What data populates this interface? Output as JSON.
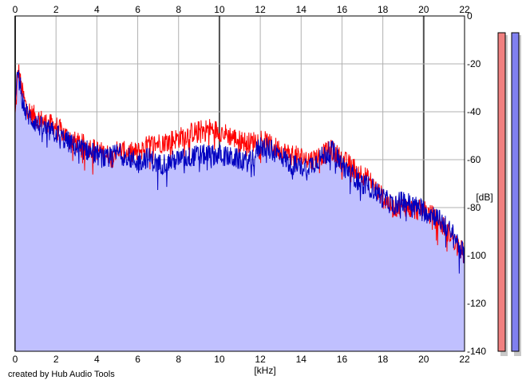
{
  "chart_data": {
    "type": "line",
    "xlabel": "[kHz]",
    "ylabel": "[dB]",
    "xlim": [
      0,
      22
    ],
    "ylim": [
      -140,
      0
    ],
    "x_ticks": [
      0,
      2,
      4,
      6,
      8,
      10,
      12,
      14,
      16,
      18,
      20,
      22
    ],
    "y_ticks": [
      0,
      -20,
      -40,
      -60,
      -80,
      -100,
      -120,
      -140
    ],
    "grid": true,
    "series": [
      {
        "color": "#ff0000",
        "x": [
          0,
          0.15,
          0.3,
          0.5,
          0.8,
          1.2,
          1.6,
          2,
          2.5,
          3,
          3.5,
          4,
          4.5,
          5,
          5.5,
          6,
          6.5,
          7,
          7.5,
          8,
          8.5,
          9,
          9.5,
          10,
          10.5,
          11,
          11.5,
          12,
          12.5,
          13,
          13.5,
          14,
          14.5,
          15,
          15.5,
          16,
          16.5,
          17,
          17.5,
          18,
          18.5,
          19,
          19.5,
          20,
          20.5,
          21,
          21.5,
          22
        ],
        "values": [
          -42,
          -22,
          -30,
          -37,
          -41,
          -43,
          -45,
          -46,
          -50,
          -53,
          -54,
          -56,
          -58,
          -56,
          -57,
          -57,
          -54,
          -53,
          -52,
          -51,
          -49,
          -48,
          -47,
          -48,
          -50,
          -52,
          -53,
          -51,
          -54,
          -56,
          -58,
          -59,
          -60,
          -58,
          -56,
          -60,
          -63,
          -66,
          -70,
          -76,
          -80,
          -79,
          -81,
          -81,
          -84,
          -88,
          -93,
          -100
        ]
      },
      {
        "color": "#0000c0",
        "x": [
          0,
          0.15,
          0.3,
          0.5,
          0.8,
          1.2,
          1.6,
          2,
          2.5,
          3,
          3.5,
          4,
          4.5,
          5,
          5.5,
          6,
          6.5,
          7,
          7.5,
          8,
          8.5,
          9,
          9.5,
          10,
          10.5,
          11,
          11.5,
          12,
          12.5,
          13,
          13.5,
          14,
          14.5,
          15,
          15.5,
          16,
          16.5,
          17,
          17.5,
          18,
          18.5,
          19,
          19.5,
          20,
          20.5,
          21,
          21.5,
          22
        ],
        "values": [
          -38,
          -21,
          -33,
          -40,
          -43,
          -46,
          -48,
          -49,
          -52,
          -55,
          -56,
          -58,
          -60,
          -57,
          -59,
          -61,
          -59,
          -62,
          -61,
          -60,
          -59,
          -58,
          -58,
          -58,
          -59,
          -60,
          -61,
          -54,
          -56,
          -58,
          -62,
          -63,
          -62,
          -59,
          -56,
          -62,
          -66,
          -70,
          -72,
          -76,
          -79,
          -77,
          -79,
          -81,
          -83,
          -87,
          -92,
          -100
        ]
      }
    ],
    "fill_color": "#c0c0ff",
    "meters": [
      {
        "color": "#f08080",
        "value": -7
      },
      {
        "color": "#8080f0",
        "value": -7
      }
    ]
  },
  "credit": "created by Hub Audio Tools"
}
